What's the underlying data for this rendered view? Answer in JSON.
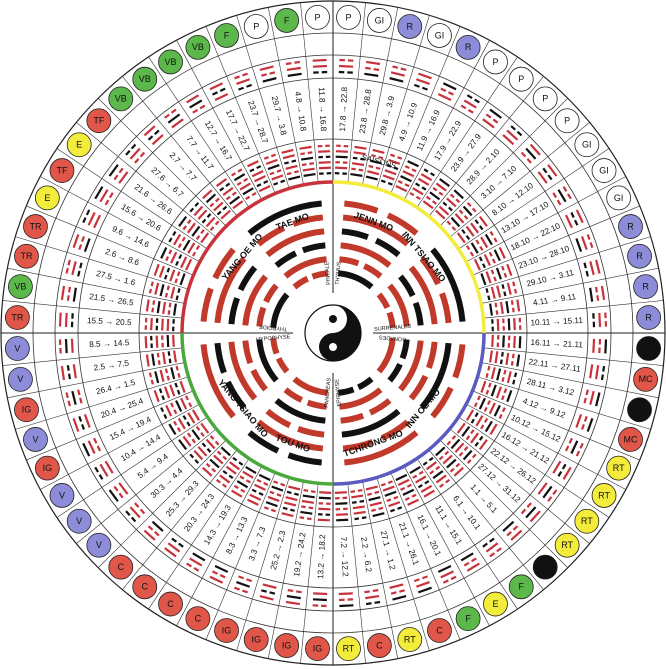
{
  "header_text": "",
  "outer_badges": [
    {
      "label": "P",
      "color": "#ffffff"
    },
    {
      "label": "GI",
      "color": "#ffffff"
    },
    {
      "label": "R",
      "color": "#8c8cd8"
    },
    {
      "label": "GI",
      "color": "#ffffff"
    },
    {
      "label": "R",
      "color": "#8c8cd8"
    },
    {
      "label": "P",
      "color": "#ffffff"
    },
    {
      "label": "P",
      "color": "#ffffff"
    },
    {
      "label": "P",
      "color": "#ffffff"
    },
    {
      "label": "P",
      "color": "#ffffff"
    },
    {
      "label": "GI",
      "color": "#ffffff"
    },
    {
      "label": "GI",
      "color": "#ffffff"
    },
    {
      "label": "GI",
      "color": "#ffffff"
    },
    {
      "label": "R",
      "color": "#8c8cd8"
    },
    {
      "label": "R",
      "color": "#8c8cd8"
    },
    {
      "label": "R",
      "color": "#8c8cd8"
    },
    {
      "label": "R",
      "color": "#8c8cd8"
    },
    {
      "label": "",
      "color": "#111111"
    },
    {
      "label": "MC",
      "color": "#e0574a"
    },
    {
      "label": "",
      "color": "#111111"
    },
    {
      "label": "MC",
      "color": "#e0574a"
    },
    {
      "label": "RT",
      "color": "#f3ec3a"
    },
    {
      "label": "RT",
      "color": "#f3ec3a"
    },
    {
      "label": "RT",
      "color": "#f3ec3a"
    },
    {
      "label": "RT",
      "color": "#f3ec3a"
    },
    {
      "label": "",
      "color": "#111111"
    },
    {
      "label": "F",
      "color": "#5cb84a"
    },
    {
      "label": "E",
      "color": "#f3ec3a"
    },
    {
      "label": "F",
      "color": "#5cb84a"
    },
    {
      "label": "C",
      "color": "#e0574a"
    },
    {
      "label": "RT",
      "color": "#f3ec3a"
    },
    {
      "label": "C",
      "color": "#e0574a"
    },
    {
      "label": "RT",
      "color": "#f3ec3a"
    },
    {
      "label": "IG",
      "color": "#e0574a"
    },
    {
      "label": "IG",
      "color": "#e0574a"
    },
    {
      "label": "IG",
      "color": "#e0574a"
    },
    {
      "label": "IG",
      "color": "#e0574a"
    },
    {
      "label": "C",
      "color": "#e0574a"
    },
    {
      "label": "C",
      "color": "#e0574a"
    },
    {
      "label": "C",
      "color": "#e0574a"
    },
    {
      "label": "C",
      "color": "#e0574a"
    },
    {
      "label": "V",
      "color": "#8c8cd8"
    },
    {
      "label": "V",
      "color": "#8c8cd8"
    },
    {
      "label": "V",
      "color": "#8c8cd8"
    },
    {
      "label": "IG",
      "color": "#e0574a"
    },
    {
      "label": "V",
      "color": "#8c8cd8"
    },
    {
      "label": "IG",
      "color": "#e0574a"
    },
    {
      "label": "V",
      "color": "#8c8cd8"
    },
    {
      "label": "V",
      "color": "#8c8cd8"
    },
    {
      "label": "TR",
      "color": "#e0574a"
    },
    {
      "label": "VB",
      "color": "#5cb84a"
    },
    {
      "label": "TR",
      "color": "#e0574a"
    },
    {
      "label": "TR",
      "color": "#e0574a"
    },
    {
      "label": "E",
      "color": "#f3ec3a"
    },
    {
      "label": "TF",
      "color": "#e0574a"
    },
    {
      "label": "E",
      "color": "#f3ec3a"
    },
    {
      "label": "TF",
      "color": "#e0574a"
    },
    {
      "label": "VB",
      "color": "#5cb84a"
    },
    {
      "label": "VB",
      "color": "#5cb84a"
    },
    {
      "label": "VB",
      "color": "#5cb84a"
    },
    {
      "label": "VB",
      "color": "#5cb84a"
    },
    {
      "label": "F",
      "color": "#5cb84a"
    },
    {
      "label": "P",
      "color": "#ffffff"
    },
    {
      "label": "F",
      "color": "#5cb84a"
    },
    {
      "label": "P",
      "color": "#ffffff"
    }
  ],
  "date_labels": [
    "17.8 → 22.8",
    "23.8 → 28.8",
    "29.8 → 3.9",
    "4.9 → 10.9",
    "11.9 → 16.9",
    "17.9 → 22.9",
    "23.9 → 27.9",
    "28.9 → 2.10",
    "3.10 → 7.10",
    "8.10 → 12.10",
    "13.10 → 17.10",
    "18.10 → 22.10",
    "23.10 → 28.10",
    "29.10 → 3.11",
    "4.11 → 9.11",
    "10.11 → 15.11",
    "16.11 → 21.11",
    "22.11 → 27.11",
    "28.11 → 3.12",
    "4.12 → 9.12",
    "10.12 → 15.12",
    "16.12 → 21.12",
    "22.12 → 26.12",
    "27.12 → 31.12",
    "1.1 → 5.1",
    "6.1 → 10.1",
    "11.1 → 15.1",
    "16.1 → 20.1",
    "21.1 → 26.1",
    "27.1 → 1.2",
    "2.2 → 6.2",
    "7.2 → 12.2",
    "13.2 → 18.2",
    "19.2 → 24.2",
    "25.2 → 2.3",
    "3.3 → 7.3",
    "8.3 → 13.3",
    "14.3 → 19.3",
    "20.3 → 24.3",
    "25.3 → 29.3",
    "30.3 → 4.4",
    "5.4 → 9.4",
    "10.4 → 14.4",
    "15.4 → 19.4",
    "20.4 → 25.4",
    "26.4 → 1.5",
    "2.5 → 7.5",
    "8.5 → 14.5",
    "15.5 → 20.5",
    "21.5 → 26.5",
    "27.5 → 1.6",
    "2.6 → 8.6",
    "9.6 → 14.6",
    "15.6 → 20.6",
    "21.6 → 26.6",
    "27.6 → 6.7",
    "2.7 → 7.7",
    "7.7 → 11.7",
    "12.7 → 16.7",
    "17.7 → 22.7",
    "23.7 → 28.7",
    "29.7 → 3.8",
    "4.8 → 10.8",
    "11.8 → 16.8"
  ],
  "season_label": "SAISONS",
  "vessels": [
    "TAE MO",
    "JENN MO",
    "INN TSIAO MO",
    "INN OE MO",
    "TCHRONG MO",
    "TOU MO",
    "YANG TSIAO MO",
    "YANG OE MO"
  ],
  "glands": [
    "PINEALE",
    "THYMUS",
    "SURRENALES",
    "GONADES",
    "EPIPHYSE",
    "PANCREAS",
    "HYPOPHYSE",
    "THYROIDE"
  ],
  "colors": {
    "red": "#c8323a",
    "black": "#111111",
    "green": "#4aa83c",
    "blue": "#5a5ac0",
    "yellow": "#f3ec3a",
    "ring_red": "#c0392b"
  }
}
